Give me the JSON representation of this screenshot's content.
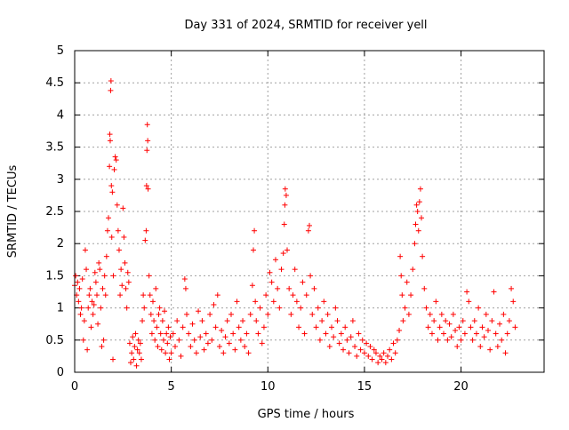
{
  "chart_data": {
    "type": "scatter",
    "title": "Day 331 of 2024, SRMTID for receiver yell",
    "xlabel": "GPS time / hours",
    "ylabel": "SRMTID / TECUs",
    "xlim": [
      0,
      24.3
    ],
    "ylim": [
      0,
      5
    ],
    "xticks": [
      0,
      5,
      10,
      15,
      20
    ],
    "yticks": [
      0,
      0.5,
      1,
      1.5,
      2,
      2.5,
      3,
      3.5,
      4,
      4.5,
      5
    ],
    "xtick_labels": [
      "0",
      "5",
      "10",
      "15",
      "20"
    ],
    "ytick_labels": [
      "0",
      "0.5",
      "1",
      "1.5",
      "2",
      "2.5",
      "3",
      "3.5",
      "4",
      "4.5",
      "5"
    ],
    "grid": true,
    "marker": "+",
    "marker_color": "#ff0000",
    "series": [
      {
        "name": "SRMTID",
        "points": [
          [
            0.0,
            1.35
          ],
          [
            0.05,
            1.5
          ],
          [
            0.1,
            1.2
          ],
          [
            0.15,
            1.4
          ],
          [
            0.2,
            1.1
          ],
          [
            0.25,
            1.3
          ],
          [
            0.3,
            0.9
          ],
          [
            0.35,
            1.0
          ],
          [
            0.4,
            1.45
          ],
          [
            0.45,
            0.5
          ],
          [
            0.5,
            0.8
          ],
          [
            0.55,
            1.9
          ],
          [
            0.6,
            1.6
          ],
          [
            0.65,
            0.35
          ],
          [
            0.7,
            1.0
          ],
          [
            0.75,
            1.2
          ],
          [
            0.8,
            1.3
          ],
          [
            0.85,
            0.7
          ],
          [
            0.9,
            1.1
          ],
          [
            0.95,
            0.9
          ],
          [
            1.0,
            1.05
          ],
          [
            1.05,
            1.55
          ],
          [
            1.1,
            1.4
          ],
          [
            1.15,
            1.2
          ],
          [
            1.2,
            0.75
          ],
          [
            1.25,
            1.7
          ],
          [
            1.3,
            1.6
          ],
          [
            1.35,
            1.0
          ],
          [
            1.4,
            0.4
          ],
          [
            1.45,
            1.3
          ],
          [
            1.5,
            0.5
          ],
          [
            1.55,
            1.5
          ],
          [
            1.6,
            1.2
          ],
          [
            1.65,
            1.8
          ],
          [
            1.7,
            2.2
          ],
          [
            1.75,
            2.4
          ],
          [
            1.8,
            3.2
          ],
          [
            1.82,
            3.7
          ],
          [
            1.84,
            3.6
          ],
          [
            1.86,
            4.38
          ],
          [
            1.88,
            4.53
          ],
          [
            1.9,
            2.9
          ],
          [
            1.92,
            2.1
          ],
          [
            1.95,
            2.8
          ],
          [
            1.98,
            0.2
          ],
          [
            2.0,
            1.5
          ],
          [
            2.05,
            3.15
          ],
          [
            2.1,
            3.35
          ],
          [
            2.15,
            3.3
          ],
          [
            2.2,
            2.6
          ],
          [
            2.25,
            2.2
          ],
          [
            2.3,
            1.9
          ],
          [
            2.35,
            1.2
          ],
          [
            2.4,
            1.6
          ],
          [
            2.45,
            1.35
          ],
          [
            2.5,
            2.55
          ],
          [
            2.55,
            2.1
          ],
          [
            2.6,
            1.7
          ],
          [
            2.65,
            1.3
          ],
          [
            2.7,
            1.0
          ],
          [
            2.75,
            1.55
          ],
          [
            2.8,
            1.4
          ],
          [
            2.85,
            0.45
          ],
          [
            2.9,
            0.15
          ],
          [
            2.95,
            0.3
          ],
          [
            3.0,
            0.55
          ],
          [
            3.05,
            0.2
          ],
          [
            3.1,
            0.4
          ],
          [
            3.15,
            0.6
          ],
          [
            3.2,
            0.1
          ],
          [
            3.25,
            0.35
          ],
          [
            3.3,
            0.5
          ],
          [
            3.35,
            0.3
          ],
          [
            3.4,
            0.45
          ],
          [
            3.45,
            0.2
          ],
          [
            3.5,
            0.8
          ],
          [
            3.55,
            1.2
          ],
          [
            3.6,
            1.0
          ],
          [
            3.65,
            2.05
          ],
          [
            3.7,
            2.2
          ],
          [
            3.72,
            2.9
          ],
          [
            3.74,
            3.45
          ],
          [
            3.76,
            3.85
          ],
          [
            3.78,
            3.6
          ],
          [
            3.8,
            2.85
          ],
          [
            3.85,
            1.5
          ],
          [
            3.9,
            1.2
          ],
          [
            3.95,
            0.9
          ],
          [
            4.0,
            0.6
          ],
          [
            4.05,
            1.1
          ],
          [
            4.1,
            0.8
          ],
          [
            4.15,
            0.5
          ],
          [
            4.2,
            1.3
          ],
          [
            4.25,
            0.7
          ],
          [
            4.3,
            0.4
          ],
          [
            4.35,
            0.9
          ],
          [
            4.4,
            1.0
          ],
          [
            4.45,
            0.6
          ],
          [
            4.5,
            0.35
          ],
          [
            4.55,
            0.8
          ],
          [
            4.6,
            0.5
          ],
          [
            4.65,
            0.95
          ],
          [
            4.7,
            0.3
          ],
          [
            4.75,
            0.6
          ],
          [
            4.8,
            0.45
          ],
          [
            4.85,
            0.7
          ],
          [
            4.9,
            0.2
          ],
          [
            4.95,
            0.55
          ],
          [
            5.0,
            0.3
          ],
          [
            5.1,
            0.6
          ],
          [
            5.2,
            0.4
          ],
          [
            5.3,
            0.8
          ],
          [
            5.4,
            0.5
          ],
          [
            5.5,
            0.25
          ],
          [
            5.6,
            0.7
          ],
          [
            5.7,
            1.45
          ],
          [
            5.75,
            1.3
          ],
          [
            5.8,
            0.9
          ],
          [
            5.9,
            0.6
          ],
          [
            6.0,
            0.4
          ],
          [
            6.1,
            0.75
          ],
          [
            6.2,
            0.5
          ],
          [
            6.3,
            0.3
          ],
          [
            6.4,
            0.95
          ],
          [
            6.5,
            0.55
          ],
          [
            6.6,
            0.8
          ],
          [
            6.7,
            0.35
          ],
          [
            6.8,
            0.6
          ],
          [
            6.9,
            0.45
          ],
          [
            7.0,
            0.9
          ],
          [
            7.1,
            0.5
          ],
          [
            7.2,
            1.05
          ],
          [
            7.3,
            0.7
          ],
          [
            7.4,
            1.2
          ],
          [
            7.5,
            0.4
          ],
          [
            7.6,
            0.65
          ],
          [
            7.7,
            0.3
          ],
          [
            7.8,
            0.55
          ],
          [
            7.9,
            0.8
          ],
          [
            8.0,
            0.45
          ],
          [
            8.1,
            0.9
          ],
          [
            8.2,
            0.6
          ],
          [
            8.3,
            0.35
          ],
          [
            8.4,
            1.1
          ],
          [
            8.5,
            0.7
          ],
          [
            8.6,
            0.5
          ],
          [
            8.7,
            0.8
          ],
          [
            8.8,
            0.4
          ],
          [
            8.9,
            0.6
          ],
          [
            9.0,
            0.3
          ],
          [
            9.1,
            0.9
          ],
          [
            9.2,
            1.35
          ],
          [
            9.25,
            1.9
          ],
          [
            9.3,
            2.2
          ],
          [
            9.35,
            1.1
          ],
          [
            9.4,
            0.8
          ],
          [
            9.5,
            0.6
          ],
          [
            9.6,
            1.0
          ],
          [
            9.7,
            0.45
          ],
          [
            9.8,
            0.7
          ],
          [
            9.9,
            1.2
          ],
          [
            10.0,
            0.9
          ],
          [
            10.1,
            1.55
          ],
          [
            10.2,
            1.4
          ],
          [
            10.3,
            1.1
          ],
          [
            10.4,
            1.75
          ],
          [
            10.5,
            1.3
          ],
          [
            10.6,
            1.0
          ],
          [
            10.7,
            1.6
          ],
          [
            10.8,
            1.85
          ],
          [
            10.85,
            2.3
          ],
          [
            10.88,
            2.6
          ],
          [
            10.9,
            2.85
          ],
          [
            10.95,
            2.75
          ],
          [
            11.0,
            1.9
          ],
          [
            11.1,
            1.3
          ],
          [
            11.2,
            0.9
          ],
          [
            11.3,
            1.2
          ],
          [
            11.4,
            1.6
          ],
          [
            11.5,
            1.1
          ],
          [
            11.6,
            0.7
          ],
          [
            11.7,
            1.0
          ],
          [
            11.8,
            1.4
          ],
          [
            11.9,
            0.6
          ],
          [
            12.0,
            1.2
          ],
          [
            12.1,
            2.2
          ],
          [
            12.15,
            2.28
          ],
          [
            12.2,
            1.5
          ],
          [
            12.3,
            0.9
          ],
          [
            12.4,
            1.3
          ],
          [
            12.5,
            0.7
          ],
          [
            12.6,
            1.0
          ],
          [
            12.7,
            0.5
          ],
          [
            12.8,
            0.8
          ],
          [
            12.9,
            1.1
          ],
          [
            13.0,
            0.6
          ],
          [
            13.1,
            0.9
          ],
          [
            13.2,
            0.4
          ],
          [
            13.3,
            0.7
          ],
          [
            13.4,
            0.55
          ],
          [
            13.5,
            1.0
          ],
          [
            13.6,
            0.8
          ],
          [
            13.7,
            0.45
          ],
          [
            13.8,
            0.6
          ],
          [
            13.9,
            0.35
          ],
          [
            14.0,
            0.7
          ],
          [
            14.1,
            0.5
          ],
          [
            14.2,
            0.3
          ],
          [
            14.3,
            0.55
          ],
          [
            14.4,
            0.8
          ],
          [
            14.5,
            0.4
          ],
          [
            14.6,
            0.25
          ],
          [
            14.7,
            0.6
          ],
          [
            14.8,
            0.35
          ],
          [
            14.9,
            0.5
          ],
          [
            15.0,
            0.3
          ],
          [
            15.1,
            0.45
          ],
          [
            15.2,
            0.25
          ],
          [
            15.3,
            0.4
          ],
          [
            15.4,
            0.2
          ],
          [
            15.5,
            0.35
          ],
          [
            15.6,
            0.3
          ],
          [
            15.7,
            0.15
          ],
          [
            15.8,
            0.25
          ],
          [
            15.9,
            0.2
          ],
          [
            16.0,
            0.3
          ],
          [
            16.1,
            0.15
          ],
          [
            16.2,
            0.25
          ],
          [
            16.3,
            0.35
          ],
          [
            16.4,
            0.2
          ],
          [
            16.5,
            0.45
          ],
          [
            16.6,
            0.3
          ],
          [
            16.7,
            0.5
          ],
          [
            16.8,
            0.65
          ],
          [
            16.85,
            1.8
          ],
          [
            16.9,
            1.5
          ],
          [
            16.95,
            1.2
          ],
          [
            17.0,
            0.8
          ],
          [
            17.1,
            1.0
          ],
          [
            17.2,
            1.4
          ],
          [
            17.3,
            0.9
          ],
          [
            17.4,
            1.2
          ],
          [
            17.5,
            1.6
          ],
          [
            17.6,
            2.0
          ],
          [
            17.65,
            2.3
          ],
          [
            17.7,
            2.6
          ],
          [
            17.75,
            2.5
          ],
          [
            17.8,
            2.2
          ],
          [
            17.85,
            2.65
          ],
          [
            17.9,
            2.85
          ],
          [
            17.95,
            2.4
          ],
          [
            18.0,
            1.8
          ],
          [
            18.1,
            1.3
          ],
          [
            18.2,
            1.0
          ],
          [
            18.3,
            0.7
          ],
          [
            18.4,
            0.9
          ],
          [
            18.5,
            0.6
          ],
          [
            18.6,
            0.8
          ],
          [
            18.7,
            1.1
          ],
          [
            18.8,
            0.5
          ],
          [
            18.9,
            0.7
          ],
          [
            19.0,
            0.9
          ],
          [
            19.1,
            0.6
          ],
          [
            19.2,
            0.8
          ],
          [
            19.3,
            0.5
          ],
          [
            19.4,
            0.75
          ],
          [
            19.5,
            0.55
          ],
          [
            19.6,
            0.9
          ],
          [
            19.7,
            0.65
          ],
          [
            19.8,
            0.4
          ],
          [
            19.9,
            0.7
          ],
          [
            20.0,
            0.5
          ],
          [
            20.1,
            0.8
          ],
          [
            20.2,
            0.6
          ],
          [
            20.3,
            1.25
          ],
          [
            20.4,
            1.1
          ],
          [
            20.5,
            0.7
          ],
          [
            20.6,
            0.5
          ],
          [
            20.7,
            0.8
          ],
          [
            20.8,
            0.6
          ],
          [
            20.9,
            1.0
          ],
          [
            21.0,
            0.4
          ],
          [
            21.1,
            0.7
          ],
          [
            21.2,
            0.55
          ],
          [
            21.3,
            0.9
          ],
          [
            21.4,
            0.65
          ],
          [
            21.5,
            0.35
          ],
          [
            21.6,
            0.8
          ],
          [
            21.7,
            1.25
          ],
          [
            21.8,
            0.6
          ],
          [
            21.9,
            0.4
          ],
          [
            22.0,
            0.75
          ],
          [
            22.1,
            0.5
          ],
          [
            22.2,
            0.9
          ],
          [
            22.3,
            0.3
          ],
          [
            22.4,
            0.6
          ],
          [
            22.5,
            0.8
          ],
          [
            22.6,
            1.3
          ],
          [
            22.7,
            1.1
          ],
          [
            22.8,
            0.7
          ]
        ]
      }
    ]
  }
}
